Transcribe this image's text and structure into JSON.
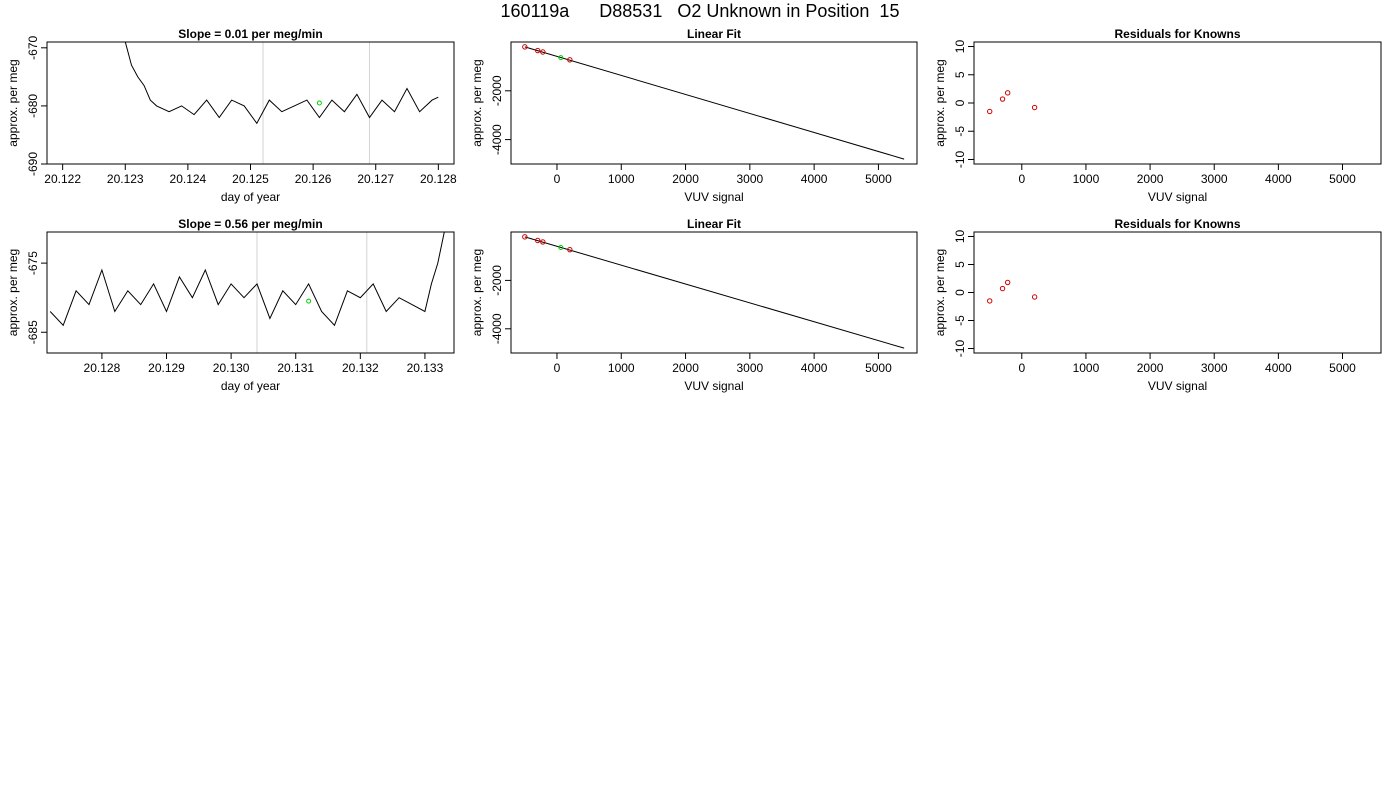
{
  "title": "160119a      D88531   O2 Unknown in Position  15",
  "colors": {
    "line": "#000000",
    "marker_known": "#cc0000",
    "marker_unknown": "#00cc00",
    "vline": "#d3d3d3"
  },
  "chart_data": [
    {
      "type": "line",
      "title": "Slope =  0.01  per meg/min",
      "xlabel": "day of year",
      "ylabel": "approx. per meg",
      "xlim": [
        20.12175,
        20.12825
      ],
      "ylim": [
        -690,
        -669
      ],
      "xticks": [
        {
          "value": 20.122,
          "label": "20.122"
        },
        {
          "value": 20.123,
          "label": "20.123"
        },
        {
          "value": 20.124,
          "label": "20.124"
        },
        {
          "value": 20.125,
          "label": "20.125"
        },
        {
          "value": 20.126,
          "label": "20.126"
        },
        {
          "value": 20.127,
          "label": "20.127"
        },
        {
          "value": 20.128,
          "label": "20.128"
        }
      ],
      "yticks": [
        {
          "value": -690,
          "label": "-690"
        },
        {
          "value": -680,
          "label": "-680"
        },
        {
          "value": -670,
          "label": "-670"
        }
      ],
      "vlines": [
        20.1252,
        20.1269
      ],
      "series": [
        {
          "x": [
            20.123,
            20.1231,
            20.1232,
            20.1233,
            20.1234,
            20.1235,
            20.1237,
            20.1239,
            20.1241,
            20.1243,
            20.1245,
            20.1247,
            20.1249,
            20.1251,
            20.1253,
            20.1255,
            20.1257,
            20.1259,
            20.1261,
            20.1263,
            20.1265,
            20.1267,
            20.1269,
            20.1271,
            20.1273,
            20.1275,
            20.1277,
            20.1279,
            20.128
          ],
          "y": [
            -669,
            -673,
            -675,
            -676.5,
            -679,
            -680,
            -681,
            -680,
            -681.5,
            -679,
            -682,
            -679,
            -680,
            -683,
            -679,
            -681,
            -680,
            -679,
            -682,
            -679,
            -681,
            -678,
            -682,
            -679,
            -681,
            -677,
            -681,
            -679,
            -678.5
          ]
        }
      ],
      "unknown_points": {
        "x": [
          20.1261
        ],
        "y": [
          -679.5
        ]
      }
    },
    {
      "type": "scatter",
      "title": "Linear Fit",
      "xlabel": "VUV signal",
      "ylabel": "approx. per meg",
      "xlim": [
        -715,
        5600
      ],
      "ylim": [
        -5000,
        0
      ],
      "xticks": [
        {
          "value": 0,
          "label": "0"
        },
        {
          "value": 1000,
          "label": "1000"
        },
        {
          "value": 2000,
          "label": "2000"
        },
        {
          "value": 3000,
          "label": "3000"
        },
        {
          "value": 4000,
          "label": "4000"
        },
        {
          "value": 5000,
          "label": "5000"
        }
      ],
      "yticks": [
        {
          "value": -4000,
          "label": "-4000"
        },
        {
          "value": -2000,
          "label": "-2000"
        }
      ],
      "fit_line": {
        "x": [
          -500,
          5400
        ],
        "y": [
          -200,
          -4800
        ]
      },
      "known_points": {
        "x": [
          -500,
          -300,
          -220,
          200
        ],
        "y": [
          -200,
          -350,
          -410,
          -730
        ]
      },
      "unknown_points": {
        "x": [
          60
        ],
        "y": [
          -640
        ]
      }
    },
    {
      "type": "scatter",
      "title": "Residuals for Knowns",
      "xlabel": "VUV signal",
      "ylabel": "approx. per meg",
      "xlim": [
        -745,
        5600
      ],
      "ylim": [
        -10.8,
        10.8
      ],
      "xticks": [
        {
          "value": 0,
          "label": "0"
        },
        {
          "value": 1000,
          "label": "1000"
        },
        {
          "value": 2000,
          "label": "2000"
        },
        {
          "value": 3000,
          "label": "3000"
        },
        {
          "value": 4000,
          "label": "4000"
        },
        {
          "value": 5000,
          "label": "5000"
        }
      ],
      "yticks": [
        {
          "value": -10,
          "label": "-10"
        },
        {
          "value": -5,
          "label": "-5"
        },
        {
          "value": 0,
          "label": "0"
        },
        {
          "value": 5,
          "label": "5"
        },
        {
          "value": 10,
          "label": "10"
        }
      ],
      "known_points": {
        "x": [
          -500,
          -300,
          -220,
          200
        ],
        "y": [
          -1.5,
          0.7,
          1.8,
          -0.8
        ]
      }
    },
    {
      "type": "line",
      "title": "Slope =  0.56  per meg/min",
      "xlabel": "day of year",
      "ylabel": "approx. per meg",
      "xlim": [
        20.12715,
        20.13345
      ],
      "ylim": [
        -688,
        -670.5
      ],
      "xticks": [
        {
          "value": 20.128,
          "label": "20.128"
        },
        {
          "value": 20.129,
          "label": "20.129"
        },
        {
          "value": 20.13,
          "label": "20.130"
        },
        {
          "value": 20.131,
          "label": "20.131"
        },
        {
          "value": 20.132,
          "label": "20.132"
        },
        {
          "value": 20.133,
          "label": "20.133"
        }
      ],
      "yticks": [
        {
          "value": -685,
          "label": "-685"
        },
        {
          "value": -675,
          "label": "-675"
        }
      ],
      "vlines": [
        20.1304,
        20.1321
      ],
      "series": [
        {
          "x": [
            20.1272,
            20.1274,
            20.1276,
            20.1278,
            20.128,
            20.1282,
            20.1284,
            20.1286,
            20.1288,
            20.129,
            20.1292,
            20.1294,
            20.1296,
            20.1298,
            20.13,
            20.1302,
            20.1304,
            20.1306,
            20.1308,
            20.131,
            20.1312,
            20.1314,
            20.1316,
            20.1318,
            20.132,
            20.1322,
            20.1324,
            20.1326,
            20.1328,
            20.133,
            20.1331,
            20.1332,
            20.1333
          ],
          "y": [
            -682,
            -684,
            -679,
            -681,
            -676,
            -682,
            -679,
            -681,
            -678,
            -682,
            -677,
            -680,
            -676,
            -681,
            -678,
            -680,
            -678,
            -683,
            -679,
            -681,
            -678,
            -682,
            -684,
            -679,
            -680,
            -678,
            -682,
            -680,
            -681,
            -682,
            -678,
            -675,
            -670.5
          ]
        }
      ],
      "unknown_points": {
        "x": [
          20.1312
        ],
        "y": [
          -680.5
        ]
      }
    },
    {
      "type": "scatter",
      "title": "Linear Fit",
      "xlabel": "VUV signal",
      "ylabel": "approx. per meg",
      "xlim": [
        -715,
        5600
      ],
      "ylim": [
        -5000,
        0
      ],
      "xticks": [
        {
          "value": 0,
          "label": "0"
        },
        {
          "value": 1000,
          "label": "1000"
        },
        {
          "value": 2000,
          "label": "2000"
        },
        {
          "value": 3000,
          "label": "3000"
        },
        {
          "value": 4000,
          "label": "4000"
        },
        {
          "value": 5000,
          "label": "5000"
        }
      ],
      "yticks": [
        {
          "value": -4000,
          "label": "-4000"
        },
        {
          "value": -2000,
          "label": "-2000"
        }
      ],
      "fit_line": {
        "x": [
          -500,
          5400
        ],
        "y": [
          -200,
          -4800
        ]
      },
      "known_points": {
        "x": [
          -500,
          -300,
          -220,
          200
        ],
        "y": [
          -200,
          -350,
          -410,
          -730
        ]
      },
      "unknown_points": {
        "x": [
          60
        ],
        "y": [
          -640
        ]
      }
    },
    {
      "type": "scatter",
      "title": "Residuals for Knowns",
      "xlabel": "VUV signal",
      "ylabel": "approx. per meg",
      "xlim": [
        -745,
        5600
      ],
      "ylim": [
        -10.8,
        10.8
      ],
      "xticks": [
        {
          "value": 0,
          "label": "0"
        },
        {
          "value": 1000,
          "label": "1000"
        },
        {
          "value": 2000,
          "label": "2000"
        },
        {
          "value": 3000,
          "label": "3000"
        },
        {
          "value": 4000,
          "label": "4000"
        },
        {
          "value": 5000,
          "label": "5000"
        }
      ],
      "yticks": [
        {
          "value": -10,
          "label": "-10"
        },
        {
          "value": -5,
          "label": "-5"
        },
        {
          "value": 0,
          "label": "0"
        },
        {
          "value": 5,
          "label": "5"
        },
        {
          "value": 10,
          "label": "10"
        }
      ],
      "known_points": {
        "x": [
          -500,
          -300,
          -220,
          200
        ],
        "y": [
          -1.5,
          0.7,
          1.8,
          -0.8
        ]
      }
    }
  ]
}
